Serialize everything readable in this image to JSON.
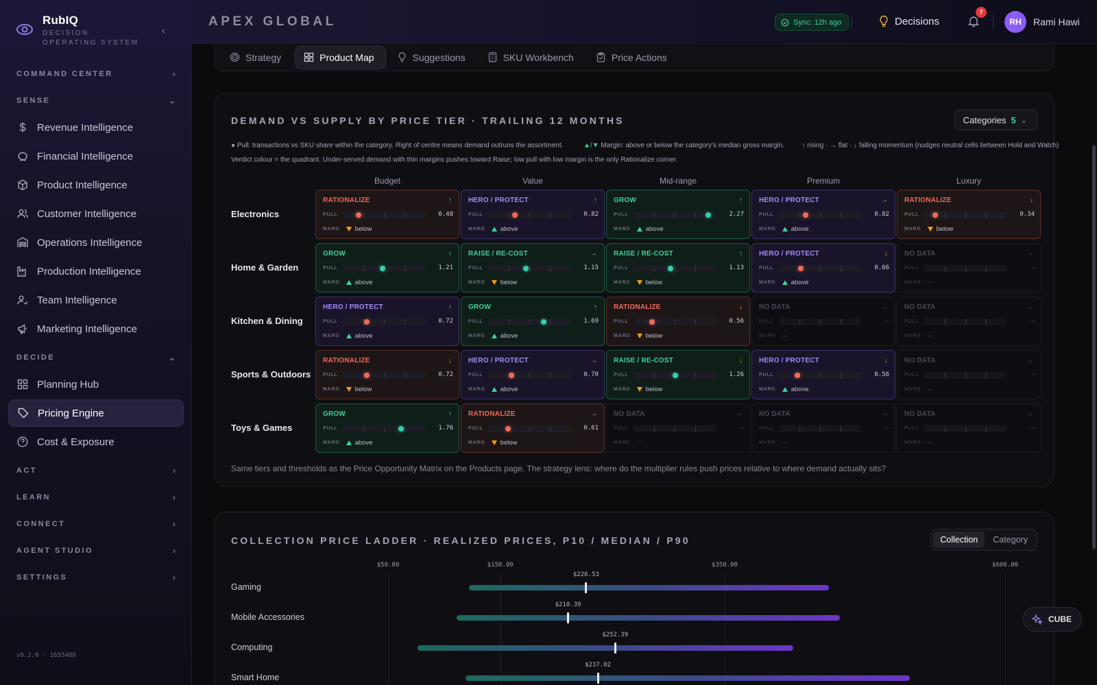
{
  "brand": {
    "name": "RubIQ",
    "subtitle": "DECISION OPERATING SYSTEM"
  },
  "sidebar": {
    "sections": {
      "command_center": "COMMAND CENTER",
      "sense": "SENSE",
      "decide": "DECIDE",
      "act": "ACT",
      "learn": "LEARN",
      "connect": "CONNECT",
      "agent_studio": "AGENT STUDIO",
      "settings": "SETTINGS"
    },
    "sense_items": [
      {
        "label": "Revenue Intelligence",
        "icon": "dollar-icon"
      },
      {
        "label": "Financial Intelligence",
        "icon": "piggy-bank-icon"
      },
      {
        "label": "Product Intelligence",
        "icon": "box-icon"
      },
      {
        "label": "Customer Intelligence",
        "icon": "users-icon"
      },
      {
        "label": "Operations Intelligence",
        "icon": "warehouse-icon"
      },
      {
        "label": "Production Intelligence",
        "icon": "factory-icon"
      },
      {
        "label": "Team Intelligence",
        "icon": "user-check-icon"
      },
      {
        "label": "Marketing Intelligence",
        "icon": "megaphone-icon"
      }
    ],
    "decide_items": [
      {
        "label": "Planning Hub",
        "icon": "grid-icon"
      },
      {
        "label": "Pricing Engine",
        "icon": "tag-icon",
        "active": true
      },
      {
        "label": "Cost & Exposure",
        "icon": "help-circle-icon"
      }
    ],
    "version": "v0.2.0 · 1655488"
  },
  "topbar": {
    "org": "APEX GLOBAL",
    "sync": "Sync: 12h ago",
    "decisions": "Decisions",
    "notifications": "7",
    "avatar_initials": "RH",
    "user": "Rami Hawi"
  },
  "tabs": [
    {
      "label": "Strategy",
      "icon": "target-icon"
    },
    {
      "label": "Product Map",
      "icon": "grid-icon",
      "active": true
    },
    {
      "label": "Suggestions",
      "icon": "lightbulb-icon"
    },
    {
      "label": "SKU Workbench",
      "icon": "calculator-icon"
    },
    {
      "label": "Price Actions",
      "icon": "clipboard-icon"
    }
  ],
  "matrix": {
    "title": "DEMAND VS SUPPLY BY PRICE TIER · TRAILING 12 MONTHS",
    "categories_button": "Categories",
    "categories_count": "5",
    "legend": {
      "pull": "● Pull: transactions vs SKU share within the category. Right of centre means demand outruns the assortment.",
      "margin_symbols": "▲/▼",
      "margin": " Margin: above or below the category's median gross margin.",
      "momentum_up": "↑",
      "momentum_text": " rising · → flat · ",
      "momentum_down": "↓",
      "momentum_tail": " falling momentum (nudges neutral cells between Hold and Watch)",
      "verdict": "Verdict colour = the quadrant. Under-served demand with thin margins pushes toward Raise; low pull with low margin is the only Rationalize corner."
    },
    "tiers": [
      "Budget",
      "Value",
      "Mid-range",
      "Premium",
      "Luxury"
    ],
    "pull_label": "PULL",
    "marg_label": "MARG",
    "rows": [
      {
        "label": "Electronics",
        "cells": [
          {
            "kind": "rationalize",
            "verdict": "RATIONALIZE",
            "mom": "↑",
            "momdir": "up",
            "pull": "0.48",
            "pull_value": 0.48,
            "marg": "below",
            "margdir": "down"
          },
          {
            "kind": "hero",
            "verdict": "HERO / PROTECT",
            "mom": "↑",
            "momdir": "up",
            "pull": "0.82",
            "pull_value": 0.82,
            "marg": "above",
            "margdir": "up"
          },
          {
            "kind": "grow",
            "verdict": "GROW",
            "mom": "↑",
            "momdir": "up",
            "pull": "2.27",
            "pull_value": 2.27,
            "marg": "above",
            "margdir": "up"
          },
          {
            "kind": "hero",
            "verdict": "HERO / PROTECT",
            "mom": "→",
            "momdir": "flat",
            "pull": "0.82",
            "pull_value": 0.82,
            "marg": "above",
            "margdir": "up"
          },
          {
            "kind": "rationalize",
            "verdict": "RATIONALIZE",
            "mom": "↓",
            "momdir": "down",
            "pull": "0.34",
            "pull_value": 0.34,
            "marg": "below",
            "margdir": "down"
          }
        ]
      },
      {
        "label": "Home & Garden",
        "cells": [
          {
            "kind": "grow",
            "verdict": "GROW",
            "mom": "↑",
            "momdir": "up",
            "pull": "1.21",
            "pull_value": 1.21,
            "marg": "above",
            "margdir": "up"
          },
          {
            "kind": "raise",
            "verdict": "RAISE / RE-COST",
            "mom": "→",
            "momdir": "flat",
            "pull": "1.15",
            "pull_value": 1.15,
            "marg": "below",
            "margdir": "down"
          },
          {
            "kind": "raise",
            "verdict": "RAISE / RE-COST",
            "mom": "↑",
            "momdir": "up",
            "pull": "1.13",
            "pull_value": 1.13,
            "marg": "below",
            "margdir": "down"
          },
          {
            "kind": "hero",
            "verdict": "HERO / PROTECT",
            "mom": "↓",
            "momdir": "down",
            "pull": "0.66",
            "pull_value": 0.66,
            "marg": "above",
            "margdir": "up"
          },
          {
            "kind": "nodata",
            "verdict": "NO DATA",
            "mom": "→",
            "momdir": "flat",
            "pull": "—",
            "marg": "—"
          }
        ]
      },
      {
        "label": "Kitchen & Dining",
        "cells": [
          {
            "kind": "hero",
            "verdict": "HERO / PROTECT",
            "mom": "↑",
            "momdir": "up",
            "pull": "0.72",
            "pull_value": 0.72,
            "marg": "above",
            "margdir": "up"
          },
          {
            "kind": "grow",
            "verdict": "GROW",
            "mom": "↑",
            "momdir": "up",
            "pull": "1.69",
            "pull_value": 1.69,
            "marg": "above",
            "margdir": "up"
          },
          {
            "kind": "rationalize",
            "verdict": "RATIONALIZE",
            "mom": "↓",
            "momdir": "down",
            "pull": "0.56",
            "pull_value": 0.56,
            "marg": "below",
            "margdir": "down"
          },
          {
            "kind": "nodata",
            "verdict": "NO DATA",
            "mom": "→",
            "momdir": "flat",
            "pull": "—",
            "marg": "—"
          },
          {
            "kind": "nodata",
            "verdict": "NO DATA",
            "mom": "→",
            "momdir": "flat",
            "pull": "—",
            "marg": "—"
          }
        ]
      },
      {
        "label": "Sports & Outdoors",
        "cells": [
          {
            "kind": "rationalize",
            "verdict": "RATIONALIZE",
            "mom": "↓",
            "momdir": "down",
            "pull": "0.72",
            "pull_value": 0.72,
            "marg": "below",
            "margdir": "down"
          },
          {
            "kind": "hero",
            "verdict": "HERO / PROTECT",
            "mom": "→",
            "momdir": "flat",
            "pull": "0.70",
            "pull_value": 0.7,
            "marg": "above",
            "margdir": "up"
          },
          {
            "kind": "raise",
            "verdict": "RAISE / RE-COST",
            "mom": "↓",
            "momdir": "down",
            "pull": "1.26",
            "pull_value": 1.26,
            "marg": "below",
            "margdir": "down"
          },
          {
            "kind": "hero",
            "verdict": "HERO / PROTECT",
            "mom": "↓",
            "momdir": "down",
            "pull": "0.56",
            "pull_value": 0.56,
            "marg": "above",
            "margdir": "up"
          },
          {
            "kind": "nodata",
            "verdict": "NO DATA",
            "mom": "→",
            "momdir": "flat",
            "pull": "—",
            "marg": "—"
          }
        ]
      },
      {
        "label": "Toys & Games",
        "cells": [
          {
            "kind": "grow",
            "verdict": "GROW",
            "mom": "↑",
            "momdir": "up",
            "pull": "1.76",
            "pull_value": 1.76,
            "marg": "above",
            "margdir": "up"
          },
          {
            "kind": "rationalize",
            "verdict": "RATIONALIZE",
            "mom": "→",
            "momdir": "flat",
            "pull": "0.61",
            "pull_value": 0.61,
            "marg": "below",
            "margdir": "down"
          },
          {
            "kind": "nodata",
            "verdict": "NO DATA",
            "mom": "→",
            "momdir": "flat",
            "pull": "—",
            "marg": "—"
          },
          {
            "kind": "nodata",
            "verdict": "NO DATA",
            "mom": "→",
            "momdir": "flat",
            "pull": "—",
            "marg": "—"
          },
          {
            "kind": "nodata",
            "verdict": "NO DATA",
            "mom": "→",
            "momdir": "flat",
            "pull": "—",
            "marg": "—"
          }
        ]
      }
    ],
    "footnote": "Same tiers and thresholds as the Price Opportunity Matrix on the Products page. The strategy lens: where do the multiplier rules push prices relative to where demand actually sits?"
  },
  "ladder": {
    "title": "COLLECTION PRICE LADDER · REALIZED PRICES, P10 / MEDIAN / P90",
    "toggle": [
      "Collection",
      "Category"
    ],
    "axis_ticks": [
      {
        "label": "$50.00",
        "value": 50
      },
      {
        "label": "$150.00",
        "value": 150
      },
      {
        "label": "$350.00",
        "value": 350
      },
      {
        "label": "$600.00",
        "value": 600
      }
    ],
    "rows": [
      {
        "label": "Gaming",
        "p10": 122,
        "median": 226.53,
        "median_label": "$226.53",
        "p90": 443
      },
      {
        "label": "Mobile Accessories",
        "p10": 111,
        "median": 210.39,
        "median_label": "$210.39",
        "p90": 453
      },
      {
        "label": "Computing",
        "p10": 76,
        "median": 252.39,
        "median_label": "$252.39",
        "p90": 411
      },
      {
        "label": "Smart Home",
        "p10": 119,
        "median": 237.02,
        "median_label": "$237.02",
        "p90": 515
      }
    ]
  },
  "cube": "CUBE"
}
